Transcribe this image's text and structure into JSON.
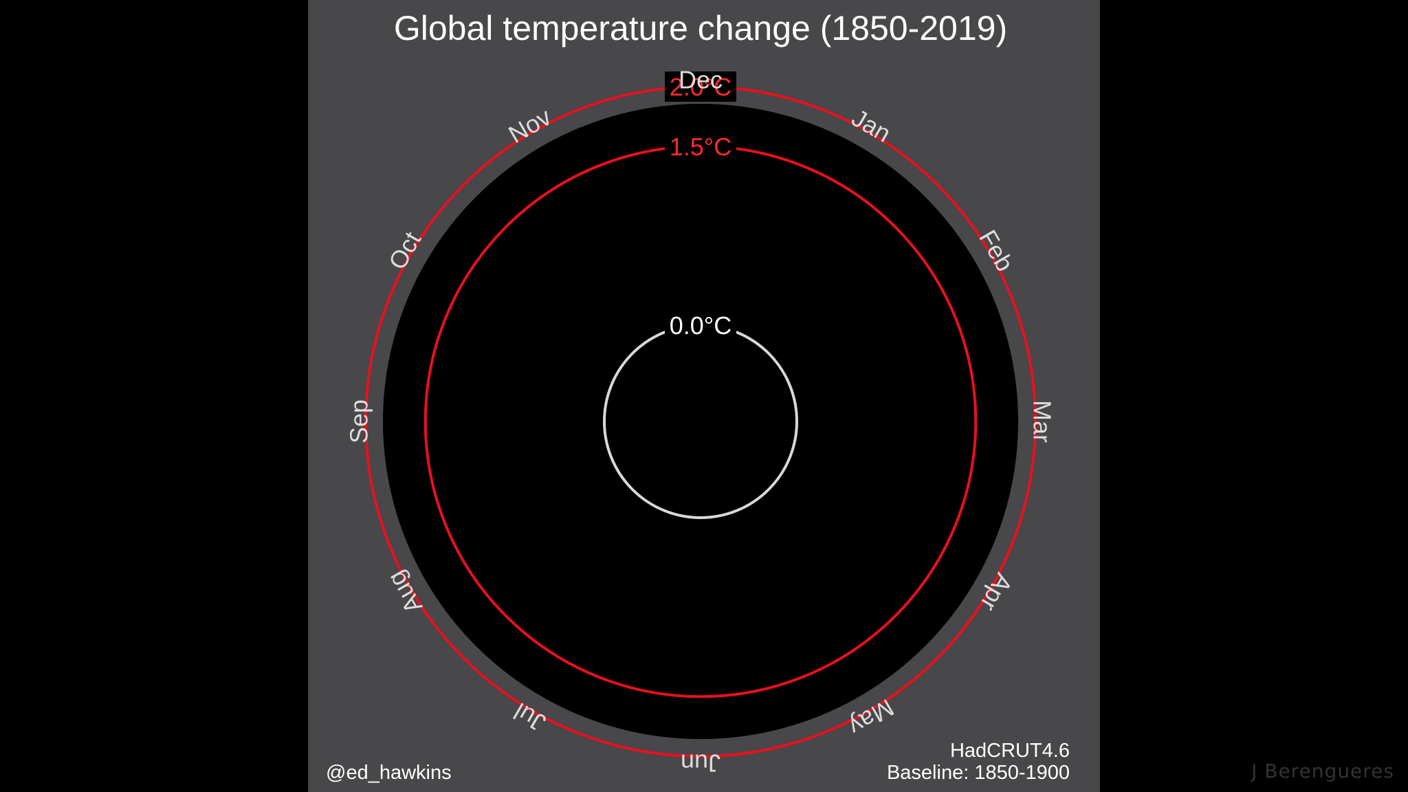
{
  "colors": {
    "screen_background": "#000000",
    "panel_background": "#48474a",
    "plot_background": "#000000",
    "threshold_ring": "#e8101f",
    "baseline_ring": "#d8d8d8",
    "text_light": "#ffffff",
    "text_month": "#dcdcdc",
    "text_threshold": "#ff2b2b",
    "credit_text": "#333333"
  },
  "chart_data": {
    "type": "polar-line",
    "title": "Global temperature change (1850-2019)",
    "angular_axis": {
      "direction": "clockwise",
      "top_category": "Dec",
      "categories": [
        "Jan",
        "Feb",
        "Mar",
        "Apr",
        "May",
        "Jun",
        "Jul",
        "Aug",
        "Sep",
        "Oct",
        "Nov",
        "Dec"
      ]
    },
    "radial_axis": {
      "unit": "°C",
      "reference_rings": [
        {
          "value": 0.0,
          "label": "0.0°C",
          "color": "#d8d8d8"
        },
        {
          "value": 1.5,
          "label": "1.5°C",
          "color": "#e8101f"
        },
        {
          "value": 2.0,
          "label": "2.0°C",
          "color": "#e8101f"
        }
      ]
    },
    "series": [],
    "annotations": {
      "author": "@ed_hawkins",
      "dataset": "HadCRUT4.6",
      "baseline": "Baseline: 1850-1900"
    }
  },
  "overlay": {
    "credit": "J Berengueres"
  }
}
